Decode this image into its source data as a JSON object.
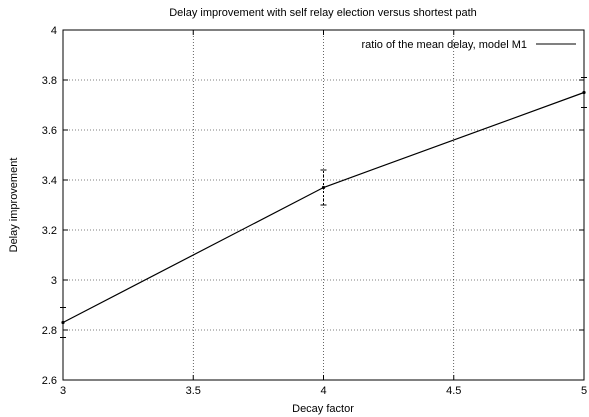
{
  "chart_data": {
    "type": "line",
    "title": "Delay improvement with self relay election versus shortest path",
    "xlabel": "Decay factor",
    "ylabel": "Delay improvement",
    "xlim": [
      3,
      5
    ],
    "ylim": [
      2.6,
      4
    ],
    "xticks": [
      3,
      3.5,
      4,
      4.5,
      5
    ],
    "xtick_labels": [
      "3",
      "3.5",
      "4",
      "4.5",
      "5"
    ],
    "yticks": [
      2.6,
      2.8,
      3,
      3.2,
      3.4,
      3.6,
      3.8,
      4
    ],
    "ytick_labels": [
      "2.6",
      "2.8",
      "3",
      "3.2",
      "3.4",
      "3.6",
      "3.8",
      "4"
    ],
    "grid": true,
    "legend_position": "top-right",
    "series": [
      {
        "name": "ratio of the mean delay, model M1",
        "color": "#000000",
        "x": [
          3,
          4,
          5
        ],
        "y": [
          2.83,
          3.37,
          3.75
        ],
        "error": [
          [
            2.77,
            2.89
          ],
          [
            3.3,
            3.44
          ],
          [
            3.69,
            3.81
          ]
        ]
      }
    ]
  }
}
